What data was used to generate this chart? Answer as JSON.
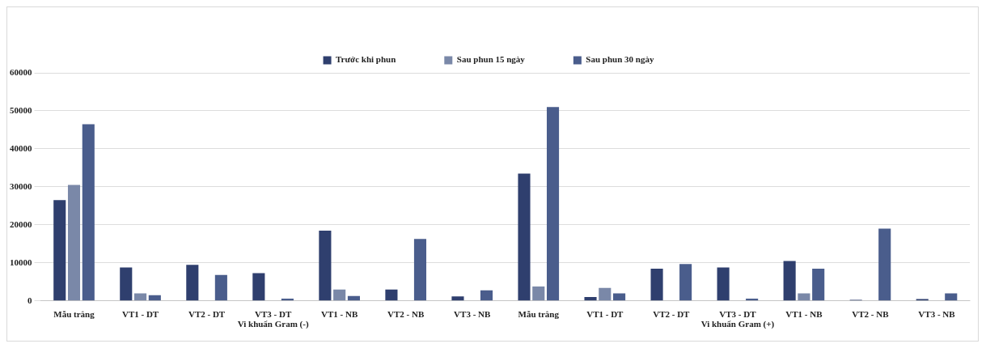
{
  "chart_data": {
    "type": "bar",
    "categories": [
      "Mẫu trắng",
      "VT1 - DT",
      "VT2 - DT",
      "VT3 - DT",
      "VT1 - NB",
      "VT2 - NB",
      "VT3 - NB",
      "Mẫu trắng",
      "VT1 - DT",
      "VT2 - DT",
      "VT3 - DT",
      "VT1 - NB",
      "VT2 - NB",
      "VT3 - NB"
    ],
    "series": [
      {
        "name": "Trước khi phun",
        "color": "#2f3f6e",
        "values": [
          26500,
          8800,
          9500,
          7300,
          18500,
          3000,
          1200,
          33500,
          1000,
          8500,
          8800,
          10500,
          300,
          500
        ]
      },
      {
        "name": "Sau phun 15 ngày",
        "color": "#7a88a8",
        "values": [
          30500,
          2000,
          0,
          0,
          3000,
          0,
          0,
          3800,
          3400,
          0,
          0,
          2000,
          0,
          0
        ]
      },
      {
        "name": "Sau phun 30 ngày",
        "color": "#4a5d8c",
        "values": [
          46500,
          1500,
          6800,
          600,
          1300,
          16300,
          2800,
          51000,
          2000,
          9700,
          600,
          8500,
          19000,
          2000
        ]
      }
    ],
    "ylim": [
      0,
      60000
    ],
    "yticks": [
      0,
      10000,
      20000,
      30000,
      40000,
      50000,
      60000
    ],
    "grid": "y",
    "legend": "top",
    "annotations": [
      "Vi khuẩn Gram (-)",
      "Vi khuẩn Gram (+)"
    ]
  }
}
